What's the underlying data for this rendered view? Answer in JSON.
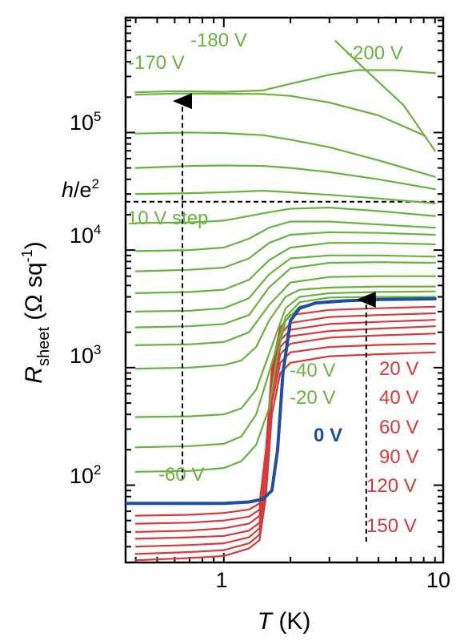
{
  "chart_data": {
    "type": "line",
    "xscale": "log",
    "yscale": "log",
    "xlim": [
      0.36,
      9.8
    ],
    "ylim": [
      22,
      950000
    ],
    "x_ticks": [
      {
        "value": 1,
        "label": "1"
      },
      {
        "value": 10,
        "label": "10"
      }
    ],
    "y_ticks": [
      {
        "value": 100,
        "base": "10",
        "exp": "2"
      },
      {
        "value": 1000,
        "base": "10",
        "exp": "3"
      },
      {
        "value": 10000,
        "base": "10",
        "exp": "4"
      },
      {
        "value": 100000,
        "base": "10",
        "exp": "5"
      }
    ],
    "xlabel": {
      "var": "T",
      "unit": " (K)"
    },
    "ylabel": {
      "var": "R",
      "sub": "sheet",
      "unit": " (Ω sq",
      "sup": "-1",
      "close": ")"
    },
    "reference_line": {
      "value": 25813,
      "label_var": "h",
      "label_rest": "/e",
      "label_sup": "2"
    },
    "colors": {
      "green": "#6ab23e",
      "blue": "#1f4fa0",
      "red": "#d63a3a"
    },
    "series_green": [
      {
        "x": [
          0.4,
          0.6,
          1.0,
          1.5,
          2.0,
          3.0,
          4.0,
          6.0,
          9.0
        ],
        "y": [
          220000,
          225000,
          222000,
          228000,
          260000,
          310000,
          340000,
          340000,
          320000
        ],
        "label": "-180 V"
      },
      {
        "x": [
          0.4,
          0.6,
          1.0,
          1.5,
          2.0,
          3.0,
          5.0,
          8.0
        ],
        "y": [
          210000,
          215000,
          214000,
          213000,
          205000,
          180000,
          140000,
          95000
        ],
        "label": "-170 V"
      },
      {
        "x": [
          3.2,
          4.0,
          5.0,
          6.5,
          9.0
        ],
        "y": [
          600000,
          400000,
          270000,
          170000,
          70000
        ],
        "label": "-200 V"
      },
      {
        "x": [
          0.4,
          0.7,
          1.0,
          1.5,
          2.0,
          3.0,
          5.0,
          9.0
        ],
        "y": [
          98000,
          100000,
          99000,
          95000,
          87000,
          75000,
          58000,
          42000
        ]
      },
      {
        "x": [
          0.4,
          0.7,
          1.0,
          1.5,
          2.0,
          3.0,
          5.0,
          9.0
        ],
        "y": [
          50000,
          52000,
          52500,
          52000,
          50000,
          46000,
          40000,
          33000
        ]
      },
      {
        "x": [
          0.4,
          0.7,
          1.0,
          1.5,
          2.0,
          3.0,
          5.0,
          9.0
        ],
        "y": [
          30000,
          30500,
          31000,
          32000,
          31000,
          29500,
          27500,
          25000
        ]
      },
      {
        "x": [
          0.4,
          0.7,
          1.0,
          1.3,
          1.6,
          2.0,
          3.0,
          5.0,
          9.0
        ],
        "y": [
          17000,
          17200,
          17800,
          19500,
          21000,
          22500,
          23000,
          21500,
          19500
        ],
        "label": "10 V step"
      },
      {
        "x": [
          0.4,
          0.7,
          1.0,
          1.3,
          1.6,
          2.0,
          3.0,
          5.0,
          9.0
        ],
        "y": [
          9800,
          10000,
          10500,
          12500,
          15500,
          17500,
          17500,
          16500,
          15500
        ]
      },
      {
        "x": [
          0.4,
          0.7,
          1.0,
          1.3,
          1.6,
          2.0,
          3.0,
          5.0,
          9.0
        ],
        "y": [
          6600,
          6800,
          7100,
          8500,
          11500,
          13500,
          14200,
          14000,
          13500
        ]
      },
      {
        "x": [
          0.4,
          0.7,
          1.0,
          1.3,
          1.6,
          2.0,
          3.0,
          5.0,
          9.0
        ],
        "y": [
          4300,
          4400,
          4600,
          5600,
          8200,
          10500,
          11500,
          11500,
          11200
        ]
      },
      {
        "x": [
          0.4,
          0.7,
          1.0,
          1.3,
          1.6,
          2.0,
          3.0,
          5.0,
          9.0
        ],
        "y": [
          3000,
          3050,
          3200,
          3900,
          6200,
          8500,
          9000,
          9000,
          8800
        ]
      },
      {
        "x": [
          0.4,
          0.7,
          1.0,
          1.3,
          1.6,
          2.0,
          3.0,
          5.0,
          9.0
        ],
        "y": [
          2200,
          2250,
          2350,
          2800,
          4800,
          7000,
          7800,
          7900,
          7800
        ]
      },
      {
        "x": [
          0.4,
          0.7,
          1.0,
          1.3,
          1.6,
          2.0,
          3.0,
          5.0,
          9.0
        ],
        "y": [
          1550,
          1580,
          1650,
          2000,
          3400,
          5300,
          5900,
          6000,
          6000
        ]
      },
      {
        "x": [
          0.4,
          0.7,
          1.0,
          1.2,
          1.4,
          1.6,
          1.9,
          2.2,
          3.0,
          5.0,
          9.0
        ],
        "y": [
          980,
          1000,
          1050,
          1150,
          1500,
          2500,
          4000,
          4600,
          4800,
          4900,
          4900
        ]
      },
      {
        "x": [
          0.4,
          0.7,
          1.0,
          1.2,
          1.4,
          1.6,
          1.9,
          2.2,
          3.0,
          5.0,
          9.0
        ],
        "y": [
          380,
          385,
          400,
          450,
          650,
          1300,
          3200,
          4000,
          4300,
          4400,
          4450
        ],
        "label": "-40 V"
      },
      {
        "x": [
          0.4,
          0.7,
          1.0,
          1.2,
          1.4,
          1.6,
          1.9,
          2.2,
          3.0,
          5.0,
          9.0
        ],
        "y": [
          210,
          215,
          225,
          260,
          400,
          900,
          2700,
          3600,
          3950,
          4000,
          4000
        ],
        "label": "-20 V"
      },
      {
        "x": [
          0.4,
          0.7,
          1.0,
          1.2,
          1.4,
          1.6,
          1.75,
          1.9,
          2.2,
          3.0,
          5.0,
          9.0
        ],
        "y": [
          130,
          132,
          140,
          160,
          220,
          450,
          1300,
          2500,
          3300,
          3700,
          3800,
          3850
        ],
        "label": "-60 V"
      }
    ],
    "series_blue": [
      {
        "x": [
          0.36,
          0.6,
          1.0,
          1.3,
          1.5,
          1.65,
          1.75,
          1.85,
          2.0,
          2.2,
          2.6,
          3.5,
          5.0,
          9.0
        ],
        "y": [
          70,
          70,
          70,
          72,
          76,
          90,
          200,
          900,
          2500,
          3200,
          3550,
          3700,
          3800,
          3850
        ],
        "label": "0 V"
      }
    ],
    "series_red": [
      {
        "x": [
          0.4,
          0.7,
          1.0,
          1.3,
          1.45,
          1.55,
          1.65,
          1.8,
          2.0,
          3.0,
          5.0,
          9.0
        ],
        "y": [
          55,
          56,
          58,
          62,
          70,
          200,
          1000,
          2200,
          2800,
          3100,
          3200,
          3300
        ],
        "label": "20 V"
      },
      {
        "x": [
          0.4,
          0.7,
          1.0,
          1.3,
          1.45,
          1.55,
          1.65,
          1.8,
          2.0,
          3.0,
          5.0,
          9.0
        ],
        "y": [
          47,
          48,
          50,
          54,
          62,
          180,
          900,
          1900,
          2400,
          2700,
          2800,
          2900
        ],
        "label": "40 V"
      },
      {
        "x": [
          0.4,
          0.7,
          1.0,
          1.3,
          1.45,
          1.55,
          1.65,
          1.8,
          2.0,
          3.0,
          5.0,
          9.0
        ],
        "y": [
          40,
          41,
          43,
          47,
          55,
          160,
          800,
          1700,
          2100,
          2350,
          2450,
          2550
        ],
        "label": "60 V"
      },
      {
        "x": [
          0.4,
          0.7,
          1.0,
          1.3,
          1.45,
          1.55,
          1.65,
          1.8,
          2.0,
          3.0,
          5.0,
          9.0
        ],
        "y": [
          35,
          36,
          37,
          41,
          48,
          140,
          700,
          1500,
          1850,
          2050,
          2150,
          2250
        ],
        "label": "90 V"
      },
      {
        "x": [
          0.4,
          0.7,
          1.0,
          1.3,
          1.45,
          1.55,
          1.65,
          1.8,
          2.0,
          3.0,
          5.0,
          9.0
        ],
        "y": [
          30,
          31,
          32,
          36,
          43,
          120,
          600,
          1300,
          1600,
          1800,
          1880,
          1950
        ],
        "label": "120 V"
      },
      {
        "x": [
          0.4,
          0.7,
          1.0,
          1.3,
          1.45,
          1.55,
          1.65,
          1.8,
          2.0,
          3.0,
          5.0,
          9.0
        ],
        "y": [
          26,
          27,
          28,
          32,
          38,
          100,
          500,
          1100,
          1350,
          1500,
          1560,
          1600
        ]
      },
      {
        "x": [
          0.4,
          0.7,
          1.0,
          1.3,
          1.45,
          1.55,
          1.65,
          1.8,
          2.0,
          3.0,
          5.0,
          9.0
        ],
        "y": [
          23,
          24,
          25,
          29,
          34,
          80,
          400,
          900,
          1100,
          1250,
          1300,
          1350
        ],
        "label": "150 V"
      }
    ],
    "labels": {
      "m180": "-180 V",
      "m170": "-170 V",
      "m200": "-200 V",
      "step": "10 V step",
      "m40": "-40 V",
      "m20": "-20 V",
      "zero": "0 V",
      "m60": "-60 V",
      "p20": "20 V",
      "p40": "40 V",
      "p60": "60 V",
      "p90": "90 V",
      "p120": "120 V",
      "p150": "150 V"
    },
    "arrows": [
      {
        "x": 0.65,
        "y_from": 110,
        "y_to": 210000,
        "label": "-60 V to -170 V"
      },
      {
        "x": 4.4,
        "y_from": 33,
        "y_to": 4300,
        "label": "150 V to 0 V"
      }
    ]
  }
}
